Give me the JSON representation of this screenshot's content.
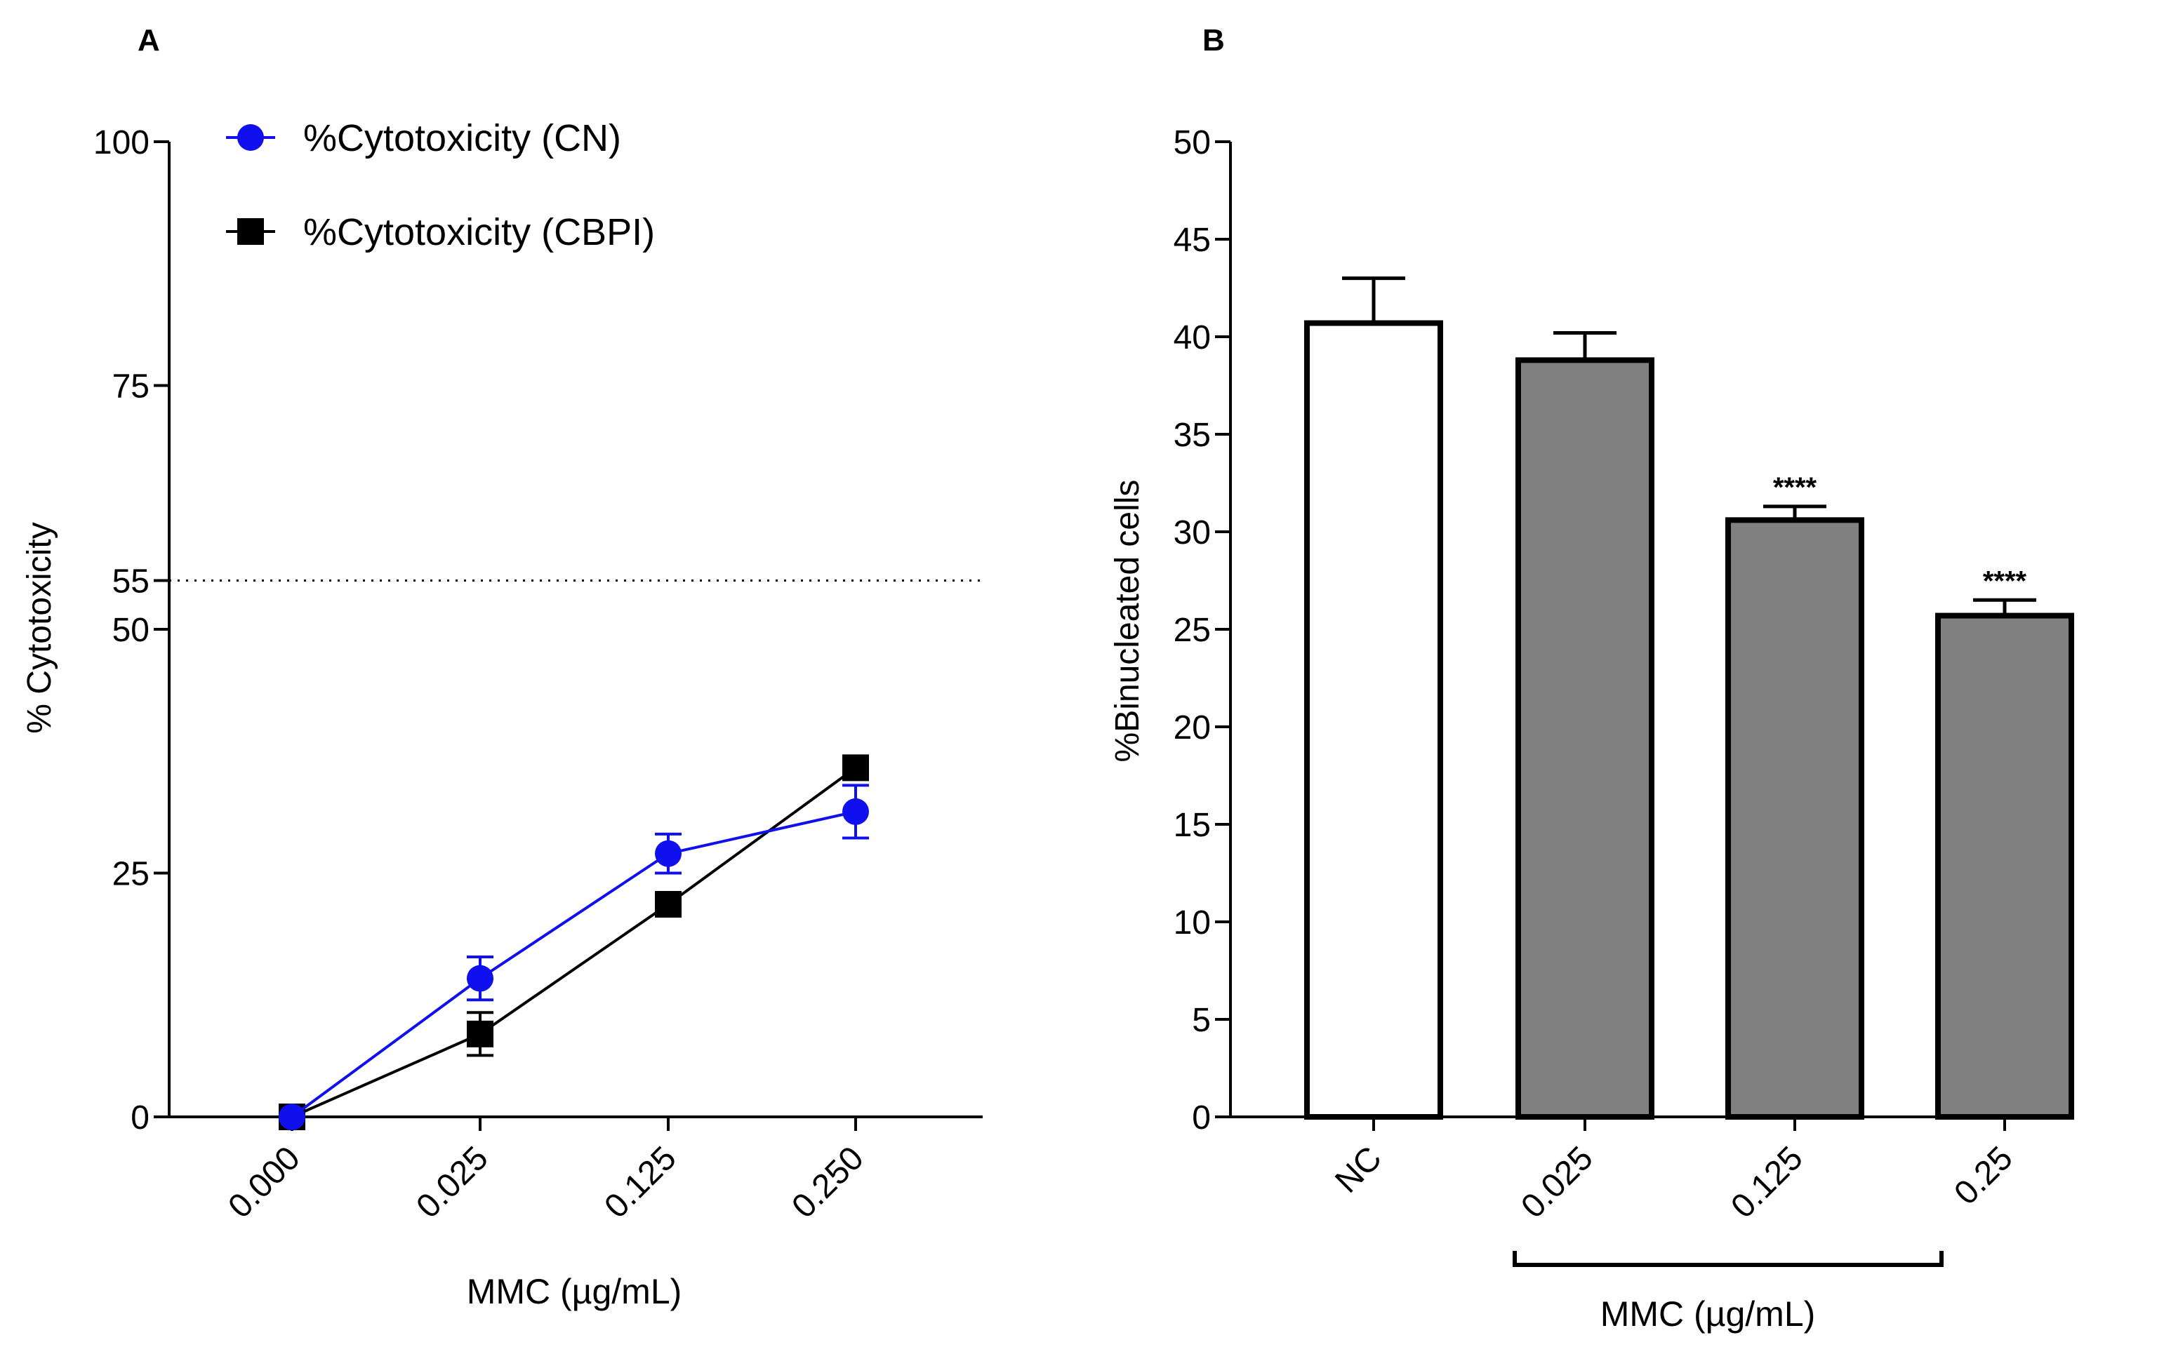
{
  "chart_data": [
    {
      "panel_label": "A",
      "type": "line",
      "title": "",
      "xlabel": "MMC (µg/mL)",
      "ylabel": "% Cytotoxicity",
      "categories": [
        "0.000",
        "0.025",
        "0.125",
        "0.250"
      ],
      "ylim": [
        0,
        100
      ],
      "yticks": [
        "0",
        "25",
        "50",
        "55",
        "75",
        "100"
      ],
      "grid": false,
      "legend_position": "top-left",
      "reference_line": {
        "value": 55,
        "style": "dotted"
      },
      "series": [
        {
          "name": "%Cytotoxicity (CN)",
          "color": "#1010ee",
          "marker": "circle",
          "values": [
            0,
            14.2,
            27.0,
            31.3
          ],
          "errors": [
            0,
            2.2,
            2.0,
            2.7
          ]
        },
        {
          "name": "%Cytotoxicity (CBPI)",
          "color": "#000000",
          "marker": "square",
          "values": [
            0,
            8.5,
            21.8,
            35.8
          ],
          "errors": [
            0,
            2.2,
            0.8,
            0.6
          ]
        }
      ]
    },
    {
      "panel_label": "B",
      "type": "bar",
      "title": "",
      "xlabel": "MMC (µg/mL)",
      "ylabel": "%Binucleated cells",
      "categories": [
        "NC",
        "0.025",
        "0.125",
        "0.25"
      ],
      "values": [
        40.7,
        38.8,
        30.6,
        25.7
      ],
      "errors": [
        2.3,
        1.4,
        0.7,
        0.8
      ],
      "bar_colors": [
        "#ffffff",
        "#808080",
        "#808080",
        "#808080"
      ],
      "significance": [
        "",
        "",
        "****",
        "****"
      ],
      "ylim": [
        0,
        50
      ],
      "yticks": [
        "0",
        "5",
        "10",
        "15",
        "20",
        "25",
        "30",
        "35",
        "40",
        "45",
        "50"
      ],
      "grid": false,
      "xlabel_bracket_categories": [
        "0.025",
        "0.25"
      ]
    }
  ]
}
